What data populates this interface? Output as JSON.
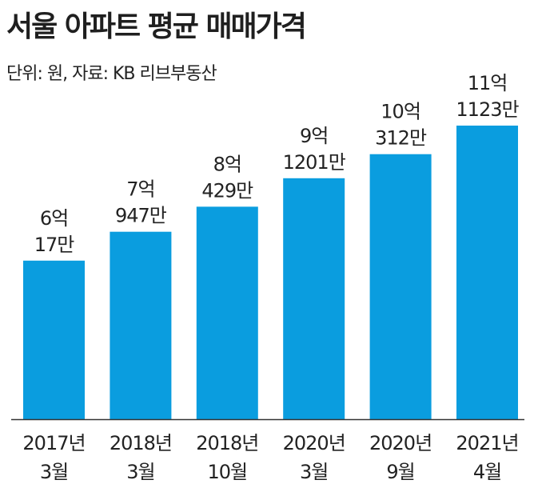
{
  "chart_data": {
    "type": "bar",
    "title": "서울 아파트 평균 매매가격",
    "subtitle": "단위: 원, 자료: KB 리브부동산",
    "unit": "만원",
    "categories": [
      [
        "2017년",
        "3월"
      ],
      [
        "2018년",
        "3월"
      ],
      [
        "2018년",
        "10월"
      ],
      [
        "2020년",
        "3월"
      ],
      [
        "2020년",
        "9월"
      ],
      [
        "2021년",
        "4월"
      ]
    ],
    "values": [
      60017,
      70947,
      80429,
      91201,
      100312,
      111123
    ],
    "data_labels": [
      [
        "6억",
        "17만"
      ],
      [
        "7억",
        "947만"
      ],
      [
        "8억",
        "429만"
      ],
      [
        "9억",
        "1201만"
      ],
      [
        "10억",
        "312만"
      ],
      [
        "11억",
        "1123만"
      ]
    ],
    "ylim": [
      0,
      111123
    ],
    "xlabel": "",
    "ylabel": "",
    "grid": false,
    "colors": {
      "bar": "#0a9ddf",
      "axis": "#333333",
      "text": "#222222"
    }
  }
}
